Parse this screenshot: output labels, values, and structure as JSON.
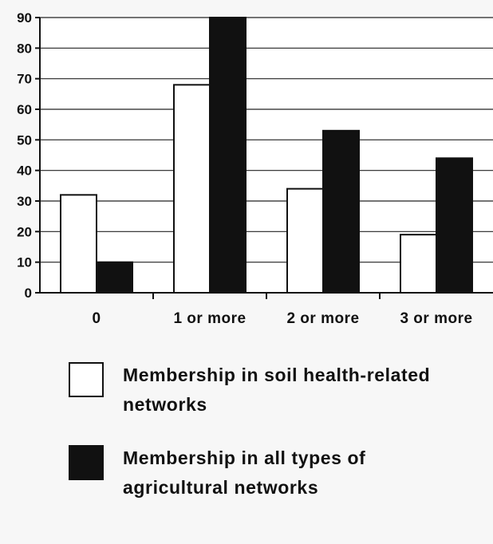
{
  "chart_data": {
    "type": "bar",
    "categories": [
      "0",
      "1 or more",
      "2 or more",
      "3 or more"
    ],
    "series": [
      {
        "name": "Membership in soil health-related networks",
        "values": [
          32,
          68,
          34,
          19
        ],
        "color": "#ffffff"
      },
      {
        "name": "Membership in all types of agricultural networks",
        "values": [
          10,
          90,
          53,
          44
        ],
        "color": "#111111"
      }
    ],
    "yticks": [
      0,
      10,
      20,
      30,
      40,
      50,
      60,
      70,
      80,
      90
    ],
    "ylim": [
      0,
      90
    ],
    "grid": true,
    "legend_position": "bottom",
    "title": "",
    "xlabel": "",
    "ylabel": ""
  }
}
